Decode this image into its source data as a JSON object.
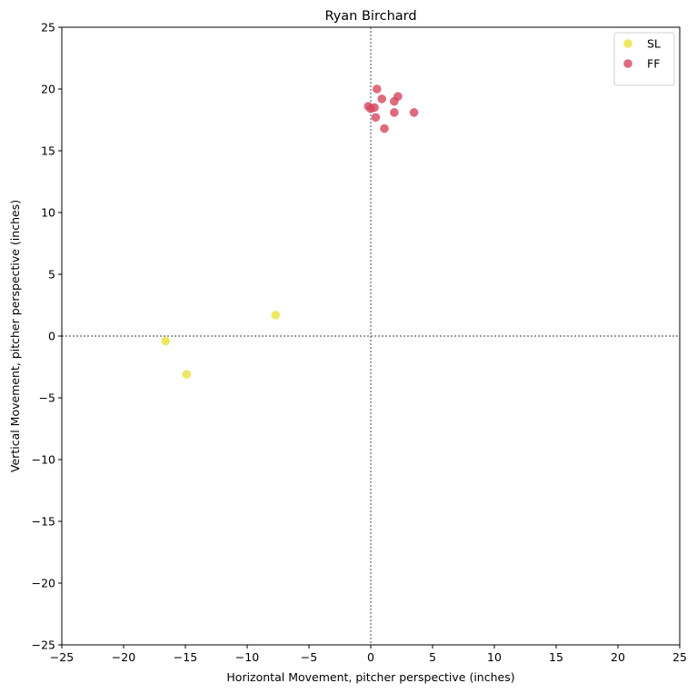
{
  "chart_data": {
    "type": "scatter",
    "title": "Ryan Birchard",
    "xlabel": "Horizontal Movement, pitcher perspective (inches)",
    "ylabel": "Vertical Movement, pitcher perspective (inches)",
    "xlim": [
      -25,
      25
    ],
    "ylim": [
      -25,
      25
    ],
    "xticks": [
      -25,
      -20,
      -15,
      -10,
      -5,
      0,
      5,
      10,
      15,
      20,
      25
    ],
    "yticks": [
      -25,
      -20,
      -15,
      -10,
      -5,
      0,
      5,
      10,
      15,
      20,
      25
    ],
    "xtick_labels": [
      "−25",
      "−20",
      "−15",
      "−10",
      "−5",
      "0",
      "5",
      "10",
      "15",
      "20",
      "25"
    ],
    "ytick_labels": [
      "−25",
      "−20",
      "−15",
      "−10",
      "−5",
      "0",
      "5",
      "10",
      "15",
      "20",
      "25"
    ],
    "grid": false,
    "reference_lines": {
      "x": 0,
      "y": 0,
      "style": "dotted"
    },
    "legend_position": "top-right",
    "series": [
      {
        "name": "SL",
        "color": "#e8e23c",
        "points": [
          [
            -16.6,
            -0.4
          ],
          [
            -14.9,
            -3.1
          ],
          [
            -7.7,
            1.7
          ]
        ]
      },
      {
        "name": "FF",
        "color": "#d6465e",
        "points": [
          [
            -0.2,
            18.6
          ],
          [
            0.0,
            18.4
          ],
          [
            0.3,
            18.5
          ],
          [
            0.5,
            20.0
          ],
          [
            0.9,
            19.2
          ],
          [
            0.4,
            17.7
          ],
          [
            1.1,
            16.8
          ],
          [
            1.9,
            19.0
          ],
          [
            1.9,
            18.1
          ],
          [
            2.2,
            19.4
          ],
          [
            3.5,
            18.1
          ]
        ]
      }
    ]
  }
}
